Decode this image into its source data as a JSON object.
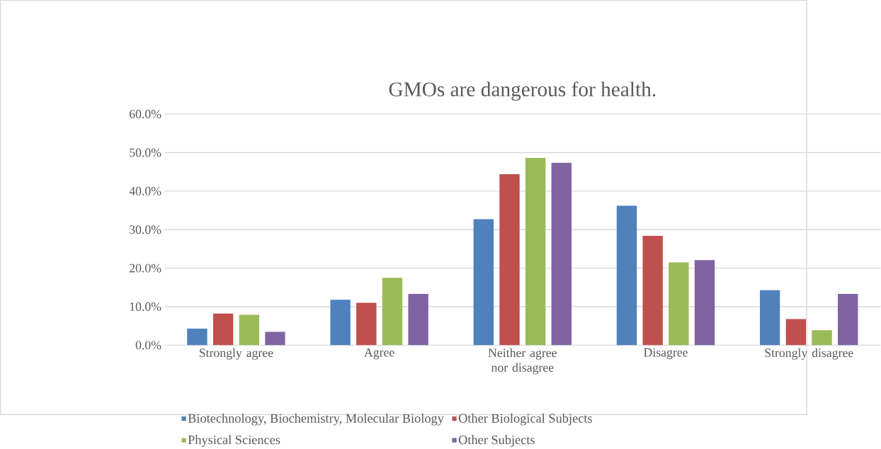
{
  "chart_data": {
    "type": "bar",
    "title": "GMOs are dangerous for health.",
    "categories": [
      "Strongly agree",
      "Agree",
      "Neither agree nor disagree",
      "Disagree",
      "Strongly disagree"
    ],
    "series": [
      {
        "name": "Biotechnology, Biochemistry, Molecular Biology",
        "color": "#4f81bd",
        "values": [
          4.3,
          11.8,
          32.7,
          36.2,
          14.3
        ]
      },
      {
        "name": "Other Biological Subjects",
        "color": "#c0504d",
        "values": [
          8.2,
          11.0,
          44.4,
          28.4,
          6.8
        ]
      },
      {
        "name": "Physical Sciences",
        "color": "#9bbb59",
        "values": [
          7.9,
          17.5,
          48.6,
          21.5,
          3.9
        ]
      },
      {
        "name": "Other Subjects",
        "color": "#8064a2",
        "values": [
          3.5,
          13.3,
          47.4,
          22.1,
          13.3
        ]
      }
    ],
    "ylim": [
      0,
      60
    ],
    "yticks": [
      {
        "value": 0,
        "label": "0.0%"
      },
      {
        "value": 10,
        "label": "10.0%"
      },
      {
        "value": 20,
        "label": "20.0%"
      },
      {
        "value": 30,
        "label": "30.0%"
      },
      {
        "value": 40,
        "label": "40.0%"
      },
      {
        "value": 50,
        "label": "50.0%"
      },
      {
        "value": 60,
        "label": "60.0%"
      }
    ],
    "grid": "y",
    "legend": "bottom"
  }
}
